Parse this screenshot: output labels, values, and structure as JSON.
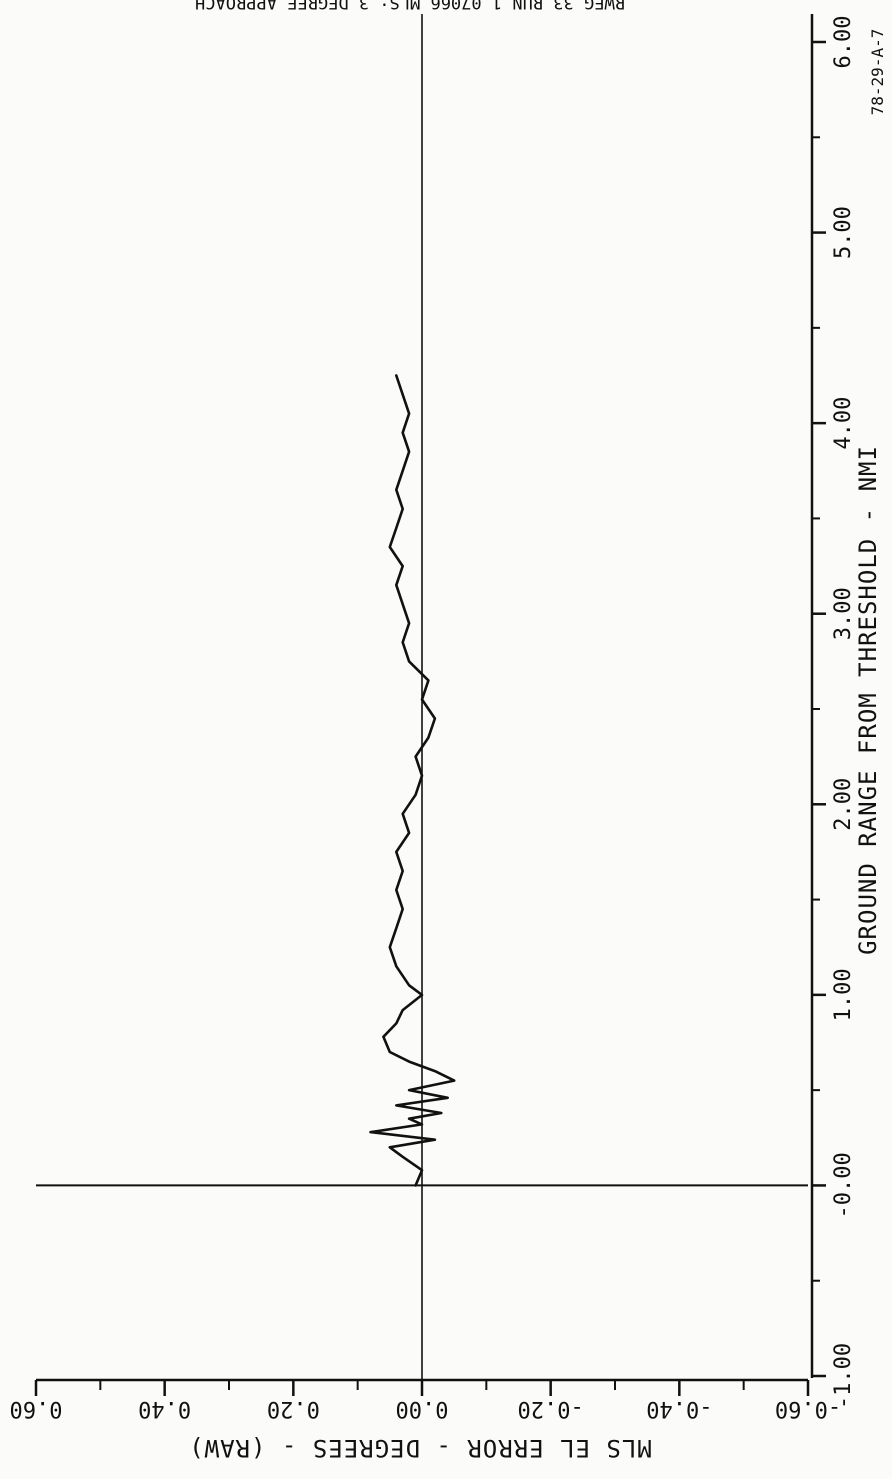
{
  "chart_data": {
    "type": "line",
    "title": "RWEG 33 RUN 1 07066 MLS: 3 DEGREE APPROACH",
    "figure_id": "78-29-A-7",
    "xlabel": "GROUND RANGE FROM THRESHOLD - NMI",
    "ylabel": "MLS EL ERROR - DEGREES - (RAW)",
    "xlim": [
      -1.0,
      6.0
    ],
    "ylim": [
      -0.6,
      0.6
    ],
    "x_tick_labels": [
      "-1.00",
      "-0.00",
      "1.00",
      "2.00",
      "3.00",
      "4.00",
      "5.00",
      "6.00"
    ],
    "y_tick_labels": [
      "0.60",
      "0.40",
      "0.20",
      "0.00",
      "-0.20",
      "-0.40",
      "-0.60"
    ],
    "orientation": "rotated 90 degrees clockwise",
    "reference_lines": {
      "x": 0.0,
      "y": 0.0
    },
    "series": [
      {
        "x": [
          0.0,
          0.08,
          0.15,
          0.2,
          0.24,
          0.28,
          0.32,
          0.35,
          0.38,
          0.42,
          0.46,
          0.5,
          0.55,
          0.6,
          0.65,
          0.7,
          0.78,
          0.85,
          0.92,
          1.0,
          1.05,
          1.15,
          1.25,
          1.35,
          1.45,
          1.55,
          1.65,
          1.75,
          1.85,
          1.95,
          2.05,
          2.15,
          2.25,
          2.35,
          2.45,
          2.55,
          2.65,
          2.75,
          2.85,
          2.95,
          3.05,
          3.15,
          3.25,
          3.35,
          3.45,
          3.55,
          3.65,
          3.75,
          3.85,
          3.95,
          4.05,
          4.15,
          4.25
        ],
        "y": [
          0.01,
          0.0,
          0.03,
          0.05,
          -0.02,
          0.08,
          0.0,
          0.02,
          -0.03,
          0.04,
          -0.04,
          0.02,
          -0.05,
          -0.02,
          0.02,
          0.05,
          0.06,
          0.04,
          0.03,
          0.0,
          0.02,
          0.04,
          0.05,
          0.04,
          0.03,
          0.04,
          0.03,
          0.04,
          0.02,
          0.03,
          0.01,
          0.0,
          0.01,
          -0.01,
          -0.02,
          0.0,
          -0.01,
          0.02,
          0.03,
          0.02,
          0.03,
          0.04,
          0.03,
          0.05,
          0.04,
          0.03,
          0.04,
          0.03,
          0.02,
          0.03,
          0.02,
          0.03,
          0.04
        ]
      }
    ]
  }
}
